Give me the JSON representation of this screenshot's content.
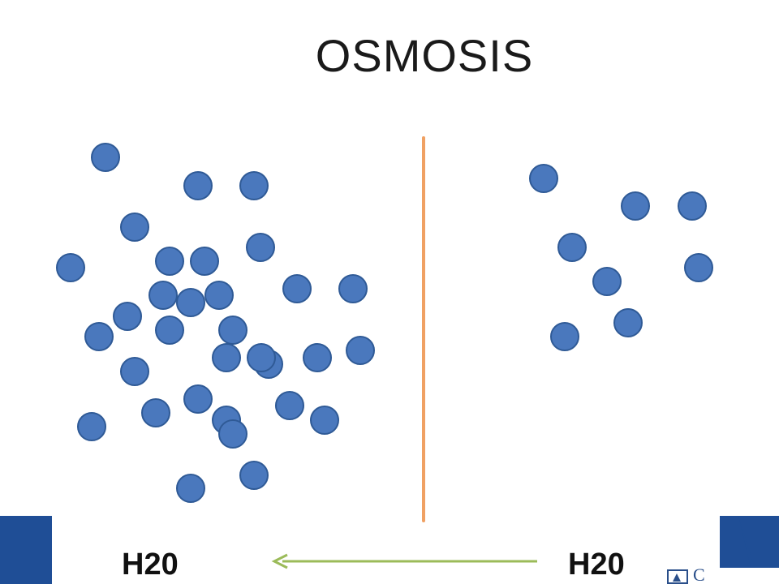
{
  "title": "OSMOSIS",
  "labels": {
    "left": "H20",
    "right": "H20"
  },
  "logo": {
    "partial_text": "C"
  },
  "colors": {
    "particle_fill": "#4a78bd",
    "particle_stroke": "#2f5a96",
    "membrane": "#f0a163",
    "arrow": "#9bbb59",
    "band": "#1f4e96",
    "background": "#ffffff"
  },
  "diagram": {
    "membrane": "vertical-line",
    "arrow_direction": "right-to-left",
    "left_particle_count": 40,
    "right_particle_count": 10
  }
}
